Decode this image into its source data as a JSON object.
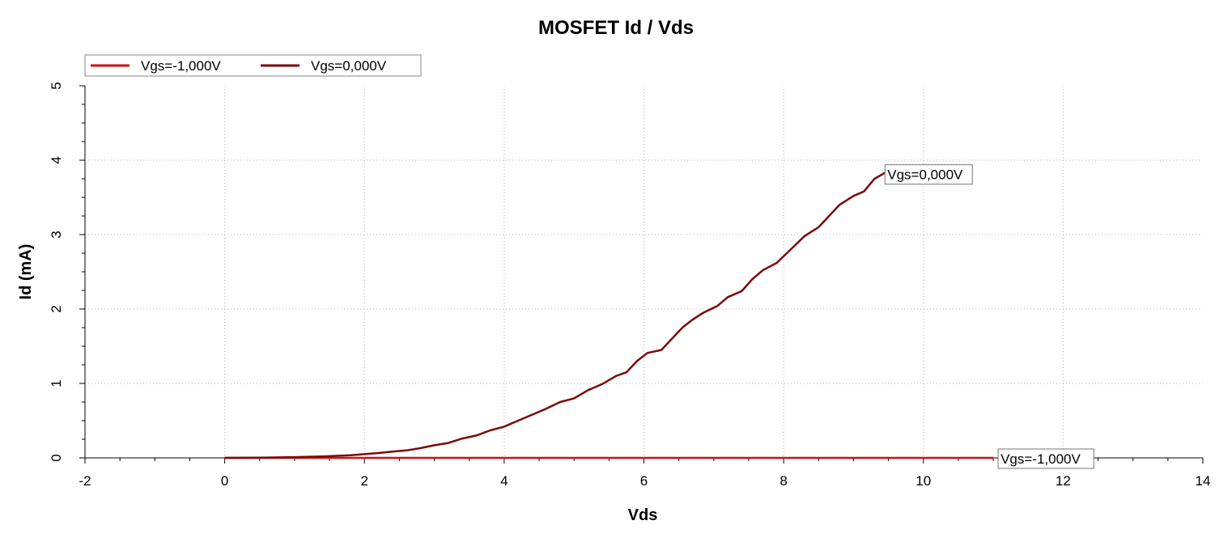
{
  "chart_data": {
    "type": "line",
    "title": "MOSFET Id / Vds",
    "xlabel": "Vds",
    "ylabel": "Id (mA)",
    "xlim": [
      -2,
      14
    ],
    "ylim": [
      0,
      5
    ],
    "xticks": [
      "-2",
      "0",
      "2",
      "4",
      "6",
      "8",
      "10",
      "12",
      "14"
    ],
    "yticks": [
      "0",
      "1",
      "2",
      "3",
      "4",
      "5"
    ],
    "grid": true,
    "legend_position": "top-left",
    "series": [
      {
        "name": "Vgs=-1,000V",
        "color": "#d01010",
        "x": [
          0,
          2,
          4,
          6,
          8,
          10,
          11
        ],
        "y": [
          0,
          0,
          0,
          0,
          0,
          0,
          0
        ]
      },
      {
        "name": "Vgs=0,000V",
        "color": "#7a0a0a",
        "x": [
          0,
          0.5,
          1.0,
          1.4,
          1.8,
          2.0,
          2.2,
          2.4,
          2.6,
          2.8,
          3.0,
          3.2,
          3.4,
          3.6,
          3.8,
          4.0,
          4.2,
          4.4,
          4.6,
          4.8,
          5.0,
          5.2,
          5.4,
          5.6,
          5.75,
          5.9,
          6.05,
          6.25,
          6.4,
          6.55,
          6.7,
          6.85,
          7.05,
          7.2,
          7.4,
          7.55,
          7.7,
          7.9,
          8.1,
          8.3,
          8.5,
          8.65,
          8.8,
          9.0,
          9.15,
          9.3,
          9.45
        ],
        "y": [
          0,
          0.003,
          0.01,
          0.02,
          0.035,
          0.05,
          0.065,
          0.085,
          0.1,
          0.13,
          0.17,
          0.2,
          0.26,
          0.3,
          0.37,
          0.42,
          0.5,
          0.58,
          0.66,
          0.75,
          0.8,
          0.91,
          0.99,
          1.1,
          1.15,
          1.3,
          1.41,
          1.45,
          1.6,
          1.75,
          1.86,
          1.95,
          2.04,
          2.16,
          2.24,
          2.4,
          2.52,
          2.62,
          2.8,
          2.98,
          3.1,
          3.25,
          3.4,
          3.52,
          3.58,
          3.75,
          3.83
        ]
      }
    ],
    "annotations": [
      {
        "text": "Vgs=0,000V",
        "x": 9.45,
        "y": 3.83
      },
      {
        "text": "Vgs=-1,000V",
        "x": 11.0,
        "y": 0.0
      }
    ]
  }
}
